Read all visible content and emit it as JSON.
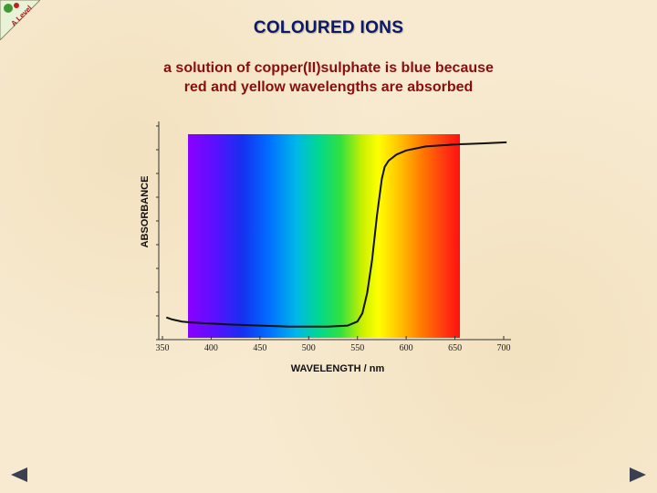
{
  "slide": {
    "title": "COLOURED IONS",
    "subtitle_line1": "a solution of copper(II)sulphate is blue because",
    "subtitle_line2": "red and yellow wavelengths are absorbed"
  },
  "logo": {
    "text": "A Level",
    "icon": "chemistry-logo-icon"
  },
  "navigation": {
    "prev_icon": "triangle-left-icon",
    "next_icon": "triangle-right-icon"
  },
  "chart_data": {
    "type": "line",
    "xlabel": "WAVELENGTH / nm",
    "ylabel": "ABSORBANCE",
    "xlim": [
      350,
      700
    ],
    "xticks": [
      350,
      400,
      450,
      500,
      550,
      600,
      650,
      700
    ],
    "xtick_labels": [
      "350",
      "400",
      "450",
      "500",
      "550",
      "600",
      "650",
      "700"
    ],
    "spectrum_band": [
      365,
      700
    ],
    "grid": false,
    "series": [
      {
        "x": [
          354,
          360,
          370,
          380,
          400,
          420,
          450,
          480,
          500,
          520,
          540,
          550,
          555,
          560,
          565,
          570,
          575,
          578,
          582,
          590,
          600,
          620,
          650,
          680,
          703
        ],
        "y": [
          0.1,
          0.09,
          0.08,
          0.075,
          0.07,
          0.065,
          0.06,
          0.055,
          0.055,
          0.055,
          0.06,
          0.08,
          0.12,
          0.22,
          0.38,
          0.6,
          0.78,
          0.84,
          0.87,
          0.9,
          0.92,
          0.94,
          0.95,
          0.955,
          0.96
        ]
      }
    ],
    "line_color": "#111111"
  }
}
